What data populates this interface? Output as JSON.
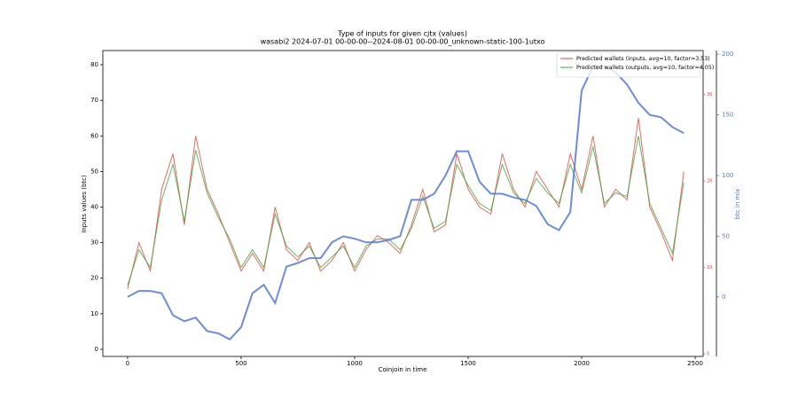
{
  "chart_data": {
    "type": "line",
    "title": "Type of inputs for given cjtx (values)",
    "subtitle": "wasabi2 2024-07-01 00-00-00--2024-08-01 00-00-00_unknown-static-100-1utxo",
    "x_label": "Coinjoin in time",
    "y_label": "Inputs values (btc)",
    "y2_label": "btc in mix",
    "xlim": [
      -109,
      2535
    ],
    "xticks": [
      0,
      500,
      1000,
      1500,
      2000,
      2500
    ],
    "ylim": [
      -2,
      84
    ],
    "yticks": [
      0,
      10,
      20,
      30,
      40,
      50,
      60,
      70,
      80
    ],
    "y2lim": [
      -49,
      203
    ],
    "y2ticks": [
      0,
      50,
      100,
      150,
      200
    ],
    "y3lim": [
      -0.3,
      35.1
    ],
    "y3ticks": [
      0,
      10,
      20,
      30
    ],
    "legend": "upper right",
    "x": [
      0,
      50,
      100,
      150,
      200,
      250,
      300,
      350,
      400,
      450,
      500,
      550,
      600,
      650,
      700,
      750,
      800,
      850,
      900,
      950,
      1000,
      1050,
      1100,
      1150,
      1200,
      1250,
      1300,
      1350,
      1400,
      1450,
      1500,
      1550,
      1600,
      1650,
      1700,
      1750,
      1800,
      1850,
      1900,
      1950,
      2000,
      2050,
      2100,
      2150,
      2200,
      2250,
      2300,
      2350,
      2400,
      2450
    ],
    "series": [
      {
        "name": "Predicted wallets (inputs, avg=10, factor=3.53)",
        "color": "#e8413c",
        "axis": "y",
        "values": [
          17,
          30,
          22,
          45,
          55,
          35,
          60,
          45,
          38,
          30,
          22,
          27,
          22,
          40,
          28,
          25,
          30,
          22,
          25,
          30,
          22,
          28,
          32,
          30,
          27,
          35,
          45,
          33,
          35,
          55,
          45,
          40,
          38,
          55,
          45,
          40,
          50,
          45,
          40,
          55,
          45,
          60,
          40,
          45,
          42,
          65,
          40,
          33,
          25,
          50
        ]
      },
      {
        "name": "Predicted wallets (outputs, avg=10, factor=4.05)",
        "color": "#3aa63a",
        "axis": "y",
        "values": [
          18,
          28,
          23,
          42,
          52,
          36,
          56,
          44,
          37,
          31,
          23,
          28,
          23,
          38,
          29,
          26,
          29,
          23,
          26,
          29,
          23,
          29,
          31,
          31,
          28,
          34,
          43,
          34,
          36,
          52,
          46,
          41,
          39,
          52,
          44,
          41,
          48,
          44,
          41,
          52,
          44,
          57,
          41,
          44,
          43,
          60,
          41,
          34,
          27,
          47
        ]
      },
      {
        "name": "btc in mix",
        "color": "#5577dd",
        "axis": "y2",
        "values": [
          0,
          5,
          5,
          3,
          -15,
          -20,
          -17,
          -28,
          -30,
          -35,
          -25,
          3,
          10,
          -5,
          25,
          28,
          32,
          32,
          45,
          50,
          48,
          45,
          45,
          47,
          50,
          80,
          80,
          85,
          100,
          120,
          120,
          95,
          85,
          85,
          82,
          80,
          75,
          60,
          55,
          70,
          170,
          190,
          190,
          185,
          175,
          160,
          150,
          148,
          140,
          135
        ]
      }
    ]
  }
}
